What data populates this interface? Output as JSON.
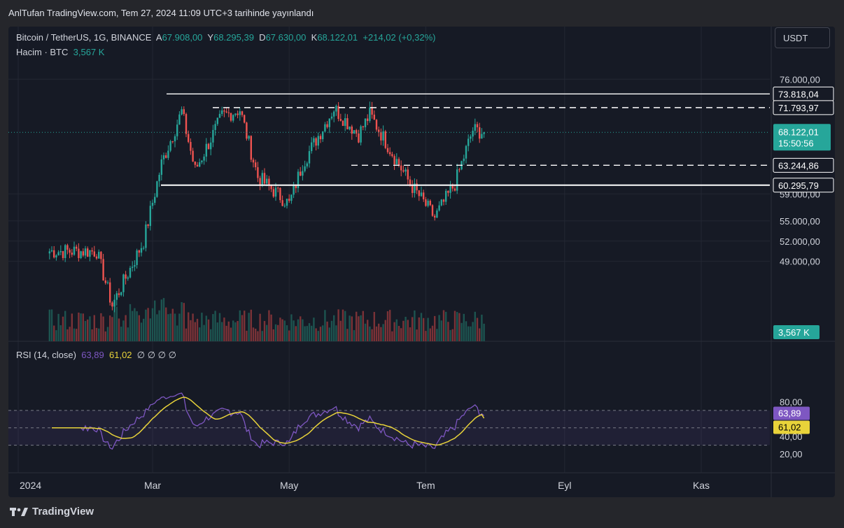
{
  "header": {
    "publisher_line": "AnlTufan TradingView.com, Tem 27, 2024 11:09 UTC+3 tarihinde yayınlandı"
  },
  "legend": {
    "symbol": "Bitcoin / TetherUS, 1G, BINANCE",
    "o_label": "A",
    "o_value": "67.908,00",
    "h_label": "Y",
    "h_value": "68.295,39",
    "l_label": "D",
    "l_value": "67.630,00",
    "c_label": "K",
    "c_value": "68.122,01",
    "change": "+214,02 (+0,32%)",
    "volume_label": "Hacim · BTC",
    "volume_value": "3,567 K"
  },
  "rsi_legend": {
    "label": "RSI (14, close)",
    "rsi_value": "63,89",
    "ma_value": "61,02",
    "extras": "∅ ∅ ∅ ∅"
  },
  "currency_button": "USDT",
  "footer": {
    "brand": "TradingView"
  },
  "colors": {
    "up": "#26a69a",
    "down": "#ef5350",
    "rsi": "#7e57c2",
    "rsi_ma": "#e8d33a",
    "background": "#161a25"
  },
  "chart_data": {
    "type": "candlestick",
    "instrument": "Bitcoin / TetherUS",
    "interval": "1G",
    "exchange": "BINANCE",
    "x_tick_labels": [
      "2024",
      "Mar",
      "May",
      "Tem",
      "Eyl",
      "Kas"
    ],
    "y_tick_labels": [
      "76.000,00",
      "59.000,00",
      "55.000,00",
      "52.000,00",
      "49.000,00"
    ],
    "horizontal_levels": [
      {
        "label": "73.818,04",
        "value": 73818.04,
        "style": "solid"
      },
      {
        "label": "71.793,97",
        "value": 71793.97,
        "style": "dashed"
      },
      {
        "label": "63.244,86",
        "value": 63244.86,
        "style": "dashed"
      },
      {
        "label": "60.295,79",
        "value": 60295.79,
        "style": "solid"
      }
    ],
    "last_price": {
      "label": "68.122,01",
      "countdown": "15:50:56",
      "value": 68122.01
    },
    "volume_last": {
      "label": "3,567 K"
    },
    "series": [
      {
        "anchor_dates": [
          "2024-01-15",
          "2024-02-05",
          "2024-02-12",
          "2024-02-26",
          "2024-03-05",
          "2024-03-14",
          "2024-03-20",
          "2024-04-01",
          "2024-04-09",
          "2024-04-17",
          "2024-05-01",
          "2024-05-07",
          "2024-05-21",
          "2024-06-01",
          "2024-06-06",
          "2024-06-24",
          "2024-07-05",
          "2024-07-14",
          "2024-07-22",
          "2024-07-27"
        ],
        "close": [
          50500,
          50500,
          42500,
          52000,
          63500,
          71200,
          62500,
          70500,
          71500,
          61500,
          57500,
          63500,
          71700,
          67800,
          70800,
          60500,
          55500,
          60500,
          68500,
          68122
        ]
      }
    ],
    "rsi": {
      "period": 14,
      "current": 63.89,
      "ma_current": 61.02,
      "y_tick_labels": [
        "80,00",
        "40,00",
        "20,00"
      ],
      "bands": [
        70,
        50,
        30
      ]
    }
  }
}
